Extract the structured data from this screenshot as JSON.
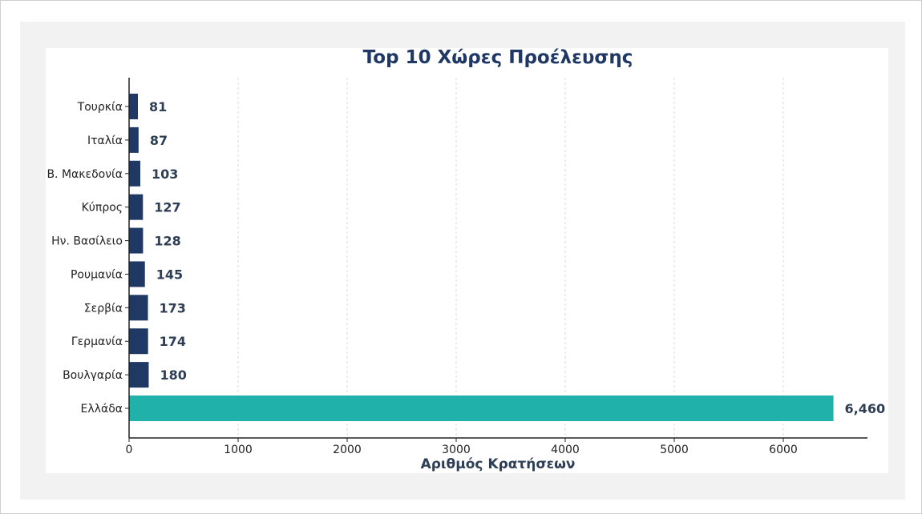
{
  "chart_data": {
    "type": "bar",
    "orientation": "horizontal",
    "title": "Top 10 Χώρες Προέλευσης",
    "xlabel": "Αριθμός Κρατήσεων",
    "ylabel": "",
    "categories": [
      "Ελλάδα",
      "Βουλγαρία",
      "Γερμανία",
      "Σερβία",
      "Ρουμανία",
      "Ην. Βασίλειο",
      "Κύπρος",
      "Β. Μακεδονία",
      "Ιταλία",
      "Τουρκία"
    ],
    "values": [
      6460,
      180,
      174,
      173,
      145,
      128,
      127,
      103,
      87,
      81
    ],
    "value_labels": [
      "6,460",
      "180",
      "174",
      "173",
      "145",
      "128",
      "127",
      "103",
      "87",
      "81"
    ],
    "xlim": [
      0,
      6800
    ],
    "xticks": [
      0,
      1000,
      2000,
      3000,
      4000,
      5000,
      6000
    ],
    "xtick_labels": [
      "0",
      "1000",
      "2000",
      "3000",
      "4000",
      "5000",
      "6000"
    ],
    "grid": "vertical dashed",
    "colors": {
      "highlight": "#20b2aa",
      "default": "#1f3864",
      "label": "#2e3f55"
    }
  }
}
